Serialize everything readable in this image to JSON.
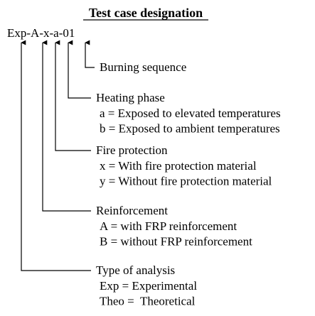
{
  "title": "Test case designation",
  "code": "Exp-A-x-a-01",
  "items": [
    {
      "label": "Burning sequence",
      "options": []
    },
    {
      "label": "Heating phase",
      "options": [
        "a = Exposed to elevated temperatures",
        "b = Exposed to ambient temperatures"
      ]
    },
    {
      "label": "Fire protection",
      "options": [
        "x = With fire protection material",
        "y = Without fire protection material"
      ]
    },
    {
      "label": "Reinforcement",
      "options": [
        "A = with FRP reinforcement",
        "B = without FRP reinforcement"
      ]
    },
    {
      "label": "Type of analysis",
      "options": [
        "Exp = Experimental",
        "Theo =  Theoretical"
      ]
    }
  ]
}
